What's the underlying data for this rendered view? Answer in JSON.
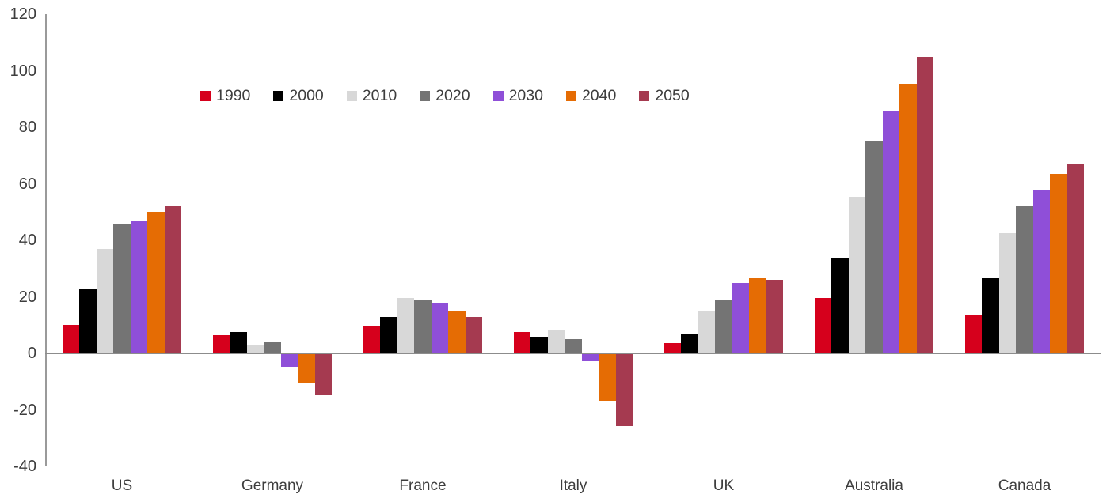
{
  "chart_data": {
    "type": "bar",
    "title": "",
    "xlabel": "",
    "ylabel": "",
    "categories": [
      "US",
      "Germany",
      "France",
      "Italy",
      "UK",
      "Australia",
      "Canada"
    ],
    "series": [
      {
        "name": "1990",
        "color": "#d6001c",
        "values": [
          10,
          6.5,
          9.5,
          7.5,
          3.5,
          19.5,
          13.5
        ]
      },
      {
        "name": "2000",
        "color": "#000000",
        "values": [
          23,
          7.5,
          13,
          6,
          7,
          33.5,
          26.5
        ]
      },
      {
        "name": "2010",
        "color": "#d8d8d8",
        "values": [
          37,
          3,
          19.5,
          8,
          15,
          55.5,
          42.5
        ]
      },
      {
        "name": "2020",
        "color": "#747474",
        "values": [
          46,
          4,
          19,
          5,
          19,
          75,
          52
        ]
      },
      {
        "name": "2030",
        "color": "#8f4fd8",
        "values": [
          47,
          -4.5,
          18,
          -2.5,
          25,
          86,
          58
        ]
      },
      {
        "name": "2040",
        "color": "#e56c04",
        "values": [
          50,
          -10,
          15,
          -16.5,
          26.5,
          95.5,
          63.5
        ]
      },
      {
        "name": "2050",
        "color": "#a53a50",
        "values": [
          52,
          -14.5,
          13,
          -25.5,
          26,
          105,
          67
        ]
      }
    ],
    "ylim": [
      -40,
      120
    ],
    "yticks": [
      120,
      100,
      80,
      60,
      40,
      20,
      0,
      -20,
      -40
    ],
    "grid": false,
    "legend_position": "top",
    "axis_color": "#9a9a9a",
    "baseline_color": "#8c8c8c",
    "text_color": "#3d3d3d"
  }
}
